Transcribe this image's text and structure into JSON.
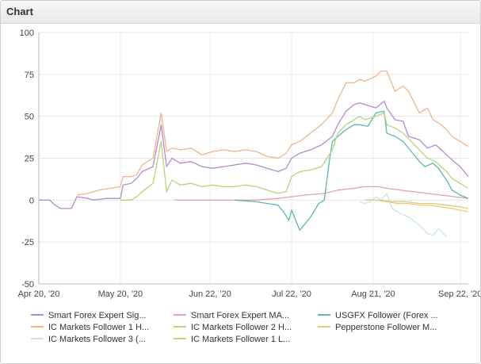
{
  "panel": {
    "title": "Chart"
  },
  "chart_data": {
    "type": "line",
    "xlabel": "",
    "ylabel": "",
    "ylim": [
      -50,
      100
    ],
    "y_ticks": [
      "100",
      "75",
      "50",
      "25",
      "0",
      "-25",
      "-50"
    ],
    "y_tick_values": [
      100,
      75,
      50,
      25,
      0,
      -25,
      -50
    ],
    "x_ticks": [
      "Apr 20, '20",
      "May 20, '20",
      "Jun 22, '20",
      "Jul 22, '20",
      "Aug 21, '20",
      "Sep 22, '20"
    ],
    "x_tick_days": [
      0,
      30,
      63,
      93,
      123,
      155
    ],
    "x_range_days": [
      0,
      158
    ],
    "grid": true,
    "legend_position": "bottom",
    "series": [
      {
        "name": "Smart Forex Expert Sig...",
        "color": "#b48ad2",
        "points": [
          [
            0,
            0
          ],
          [
            4,
            0
          ],
          [
            6,
            -3
          ],
          [
            8,
            -5
          ],
          [
            12,
            -5
          ],
          [
            14,
            2
          ],
          [
            18,
            1
          ],
          [
            20,
            0
          ],
          [
            25,
            1
          ],
          [
            30,
            1
          ],
          [
            31,
            9
          ],
          [
            34,
            10
          ],
          [
            36,
            13
          ],
          [
            38,
            17
          ],
          [
            42,
            20
          ],
          [
            45,
            45
          ],
          [
            47,
            20
          ],
          [
            49,
            25
          ],
          [
            52,
            22
          ],
          [
            56,
            23
          ],
          [
            60,
            20
          ],
          [
            64,
            19
          ],
          [
            68,
            20
          ],
          [
            72,
            21
          ],
          [
            76,
            22
          ],
          [
            80,
            21
          ],
          [
            84,
            19
          ],
          [
            88,
            17
          ],
          [
            91,
            19
          ],
          [
            93,
            25
          ],
          [
            96,
            28
          ],
          [
            100,
            30
          ],
          [
            104,
            33
          ],
          [
            108,
            38
          ],
          [
            110,
            45
          ],
          [
            113,
            53
          ],
          [
            116,
            57
          ],
          [
            118,
            58
          ],
          [
            120,
            57
          ],
          [
            124,
            55
          ],
          [
            127,
            59
          ],
          [
            128,
            55
          ],
          [
            131,
            48
          ],
          [
            134,
            47
          ],
          [
            136,
            38
          ],
          [
            140,
            36
          ],
          [
            143,
            31
          ],
          [
            146,
            33
          ],
          [
            148,
            30
          ],
          [
            150,
            27
          ],
          [
            152,
            24
          ],
          [
            155,
            20
          ],
          [
            158,
            14
          ]
        ]
      },
      {
        "name": "Smart Forex Expert MA...",
        "color": "#e8a3a3",
        "points": [
          [
            50,
            0
          ],
          [
            60,
            0
          ],
          [
            70,
            0
          ],
          [
            80,
            0
          ],
          [
            88,
            1
          ],
          [
            93,
            2
          ],
          [
            98,
            3
          ],
          [
            105,
            4
          ],
          [
            110,
            6
          ],
          [
            116,
            7
          ],
          [
            120,
            8
          ],
          [
            125,
            8
          ],
          [
            128,
            7
          ],
          [
            133,
            6
          ],
          [
            138,
            5
          ],
          [
            143,
            4
          ],
          [
            148,
            3
          ],
          [
            153,
            2
          ],
          [
            158,
            1
          ]
        ]
      },
      {
        "name": "USGFX Follower (Forex ...",
        "color": "#5db5b1",
        "points": [
          [
            72,
            0
          ],
          [
            80,
            -1
          ],
          [
            84,
            -2
          ],
          [
            88,
            -3
          ],
          [
            90,
            -7
          ],
          [
            92,
            -12
          ],
          [
            93,
            -6
          ],
          [
            96,
            -18
          ],
          [
            98,
            -14
          ],
          [
            100,
            -10
          ],
          [
            103,
            -2
          ],
          [
            105,
            0
          ],
          [
            107,
            25
          ],
          [
            108,
            35
          ],
          [
            110,
            38
          ],
          [
            113,
            42
          ],
          [
            116,
            45
          ],
          [
            118,
            45
          ],
          [
            121,
            44
          ],
          [
            124,
            52
          ],
          [
            127,
            53
          ],
          [
            128,
            40
          ],
          [
            131,
            38
          ],
          [
            134,
            35
          ],
          [
            137,
            29
          ],
          [
            140,
            23
          ],
          [
            142,
            20
          ],
          [
            145,
            22
          ],
          [
            147,
            19
          ],
          [
            150,
            12
          ],
          [
            152,
            6
          ],
          [
            155,
            3
          ],
          [
            158,
            1
          ]
        ]
      },
      {
        "name": "IC Markets Follower 1 H...",
        "color": "#f2b48a",
        "points": [
          [
            14,
            3
          ],
          [
            18,
            4
          ],
          [
            22,
            6
          ],
          [
            26,
            7
          ],
          [
            30,
            8
          ],
          [
            31,
            14
          ],
          [
            34,
            14
          ],
          [
            36,
            15
          ],
          [
            38,
            21
          ],
          [
            42,
            25
          ],
          [
            45,
            52
          ],
          [
            47,
            29
          ],
          [
            49,
            31
          ],
          [
            52,
            30
          ],
          [
            56,
            31
          ],
          [
            60,
            27
          ],
          [
            64,
            29
          ],
          [
            68,
            30
          ],
          [
            72,
            29
          ],
          [
            76,
            30
          ],
          [
            80,
            29
          ],
          [
            84,
            26
          ],
          [
            88,
            25
          ],
          [
            91,
            28
          ],
          [
            93,
            33
          ],
          [
            96,
            35
          ],
          [
            100,
            40
          ],
          [
            104,
            45
          ],
          [
            108,
            52
          ],
          [
            110,
            60
          ],
          [
            113,
            70
          ],
          [
            116,
            70
          ],
          [
            118,
            72
          ],
          [
            120,
            71
          ],
          [
            124,
            74
          ],
          [
            126,
            77
          ],
          [
            128,
            77
          ],
          [
            131,
            65
          ],
          [
            134,
            68
          ],
          [
            136,
            65
          ],
          [
            140,
            52
          ],
          [
            143,
            55
          ],
          [
            145,
            48
          ],
          [
            148,
            45
          ],
          [
            150,
            42
          ],
          [
            152,
            38
          ],
          [
            155,
            35
          ],
          [
            158,
            32
          ]
        ]
      },
      {
        "name": "IC Markets Follower 2 H...",
        "color": "#b7d47a",
        "points": [
          [
            30,
            0
          ],
          [
            34,
            0
          ],
          [
            36,
            2
          ],
          [
            38,
            5
          ],
          [
            42,
            10
          ],
          [
            45,
            35
          ],
          [
            47,
            5
          ],
          [
            49,
            12
          ],
          [
            52,
            9
          ],
          [
            56,
            10
          ],
          [
            60,
            8
          ],
          [
            64,
            9
          ],
          [
            68,
            8
          ],
          [
            72,
            8
          ],
          [
            76,
            9
          ],
          [
            80,
            8
          ],
          [
            84,
            6
          ],
          [
            88,
            4
          ],
          [
            91,
            5
          ],
          [
            93,
            14
          ],
          [
            96,
            17
          ],
          [
            100,
            18
          ],
          [
            104,
            20
          ],
          [
            108,
            30
          ],
          [
            110,
            40
          ],
          [
            113,
            45
          ],
          [
            116,
            48
          ],
          [
            118,
            50
          ],
          [
            120,
            48
          ],
          [
            124,
            50
          ],
          [
            127,
            52
          ],
          [
            128,
            45
          ],
          [
            131,
            43
          ],
          [
            134,
            40
          ],
          [
            137,
            35
          ],
          [
            140,
            30
          ],
          [
            143,
            25
          ],
          [
            146,
            23
          ],
          [
            148,
            20
          ],
          [
            150,
            17
          ],
          [
            152,
            13
          ],
          [
            155,
            10
          ],
          [
            158,
            7
          ]
        ]
      },
      {
        "name": "Pepperstone Follower M...",
        "color": "#f0c878",
        "points": [
          [
            120,
            0
          ],
          [
            124,
            0
          ],
          [
            128,
            -1
          ],
          [
            132,
            -2
          ],
          [
            136,
            -2
          ],
          [
            140,
            -3
          ],
          [
            144,
            -3
          ],
          [
            148,
            -4
          ],
          [
            152,
            -5
          ],
          [
            155,
            -6
          ],
          [
            158,
            -7
          ]
        ]
      },
      {
        "name": "IC Markets Follower 3 (...",
        "color": "#c9e3f5",
        "points": [
          [
            118,
            -1
          ],
          [
            120,
            -2
          ],
          [
            122,
            -1
          ],
          [
            124,
            2
          ],
          [
            126,
            0
          ],
          [
            128,
            4
          ],
          [
            130,
            -5
          ],
          [
            133,
            -8
          ],
          [
            136,
            -10
          ],
          [
            140,
            -15
          ],
          [
            143,
            -20
          ],
          [
            145,
            -21
          ],
          [
            147,
            -17
          ],
          [
            150,
            -22
          ]
        ]
      },
      {
        "name": "IC Markets Follower 1 L...",
        "color": "#d2cf78",
        "points": [
          [
            120,
            0
          ],
          [
            125,
            0
          ],
          [
            130,
            -1
          ],
          [
            135,
            -1
          ],
          [
            140,
            -2
          ],
          [
            145,
            -2
          ],
          [
            150,
            -3
          ],
          [
            155,
            -4
          ],
          [
            158,
            -5
          ]
        ]
      }
    ]
  }
}
